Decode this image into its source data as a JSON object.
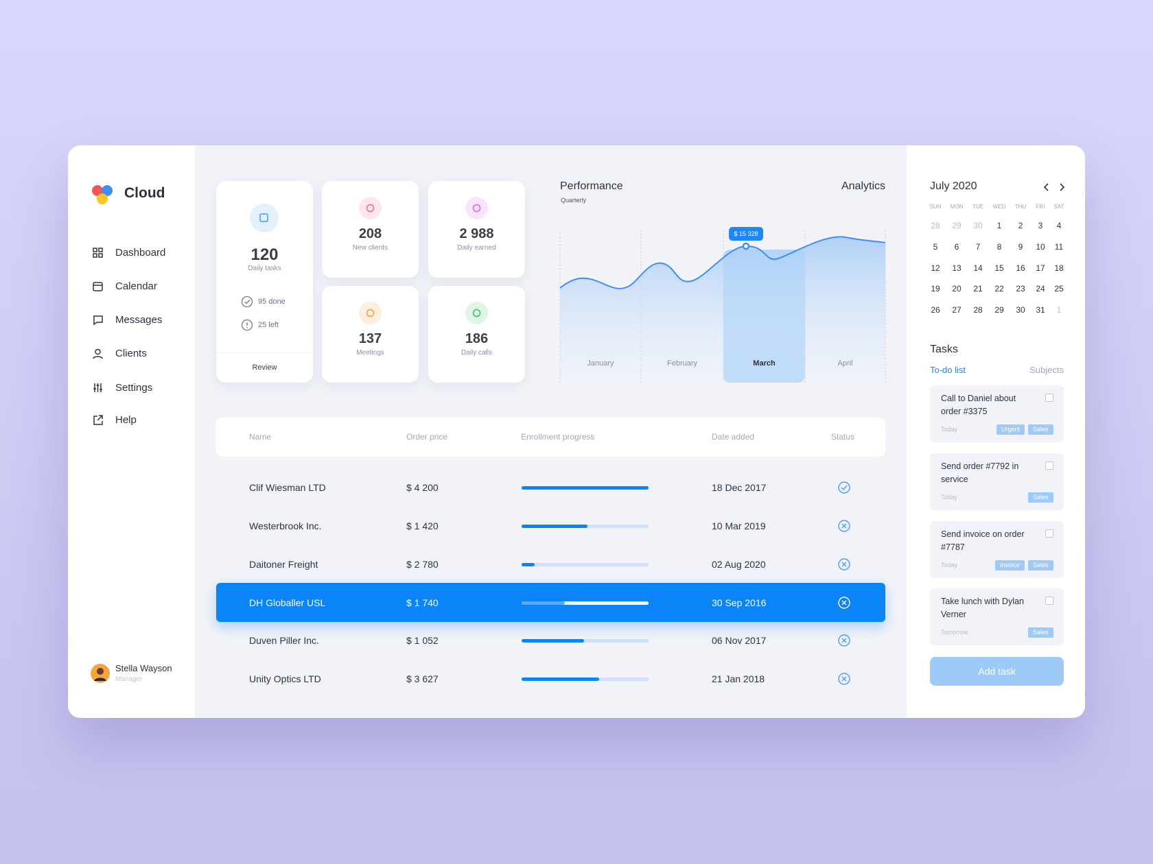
{
  "sidebar": {
    "brand": "Cloud",
    "nav": [
      "Dashboard",
      "Calendar",
      "Messages",
      "Clients",
      "Settings",
      "Help"
    ],
    "user": {
      "name": "Stella Wayson",
      "role": "Manager"
    }
  },
  "stats": {
    "tasks": {
      "value": "120",
      "label": "Daily tasks",
      "done": "95 done",
      "left": "25 left",
      "action": "Review"
    },
    "cards": [
      {
        "value": "208",
        "label": "New clients",
        "color": "#f0668a"
      },
      {
        "value": "2 988",
        "label": "Daily earned",
        "color": "#d45ef0"
      },
      {
        "value": "137",
        "label": "Meetings",
        "color": "#f59a3c"
      },
      {
        "value": "186",
        "label": "Daily calls",
        "color": "#34c26a"
      }
    ]
  },
  "performance": {
    "title": "Performance",
    "period": "Quarterly",
    "link": "Analytics",
    "months": [
      "January",
      "February",
      "March",
      "April"
    ],
    "selected": 2,
    "tooltip": "$ 15 328"
  },
  "table": {
    "columns": [
      "Name",
      "Order price",
      "Enrollment progress",
      "Date added",
      "Status"
    ],
    "progress_lim": [
      0,
      100
    ],
    "rows": [
      {
        "name": "Clif Wiesman LTD",
        "price": "$ 4 200",
        "progress": 100,
        "date": "18 Dec 2017",
        "status": "done",
        "selected": false
      },
      {
        "name": "Westerbrook Inc.",
        "price": "$ 1 420",
        "progress": 52,
        "date": "10 Mar 2019",
        "status": "cancelled",
        "selected": false
      },
      {
        "name": "Daitoner Freight",
        "price": "$ 2 780",
        "progress": 10,
        "date": "02 Aug 2020",
        "status": "cancelled",
        "selected": false
      },
      {
        "name": "DH Globaller USL",
        "price": "$ 1 740",
        "progress": 34,
        "date": "30 Sep 2016",
        "status": "cancelled",
        "selected": true
      },
      {
        "name": "Duven Piller Inc.",
        "price": "$ 1 052",
        "progress": 49,
        "date": "06 Nov 2017",
        "status": "cancelled",
        "selected": false
      },
      {
        "name": "Unity Optics LTD",
        "price": "$ 3 627",
        "progress": 61,
        "date": "21 Jan 2018",
        "status": "cancelled",
        "selected": false
      }
    ]
  },
  "calendar": {
    "title": "July 2020",
    "weekdays": [
      "SUN",
      "MON",
      "TUE",
      "WED",
      "THU",
      "FRI",
      "SAT"
    ],
    "weeks": [
      [
        28,
        29,
        30,
        1,
        2,
        3,
        4
      ],
      [
        5,
        6,
        7,
        8,
        9,
        10,
        11
      ],
      [
        12,
        13,
        14,
        15,
        16,
        17,
        18
      ],
      [
        19,
        20,
        21,
        22,
        23,
        24,
        25
      ],
      [
        26,
        27,
        28,
        29,
        30,
        31,
        1
      ]
    ]
  },
  "tasks": {
    "title": "Tasks",
    "tabs": [
      "To-do list",
      "Subjects"
    ],
    "items": [
      {
        "text": "Call to Daniel about order #3375",
        "when": "Today",
        "tags": [
          "Urgent",
          "Sales"
        ]
      },
      {
        "text": "Send order #7792 in service",
        "when": "Today",
        "tags": [
          "Sales"
        ]
      },
      {
        "text": "Send invoice on order #7787",
        "when": "Today",
        "tags": [
          "Invoice",
          "Sales"
        ]
      },
      {
        "text": "Take lunch with Dylan Verner",
        "when": "Tomorrow",
        "tags": [
          "Sales"
        ]
      }
    ],
    "button": "Add task"
  }
}
